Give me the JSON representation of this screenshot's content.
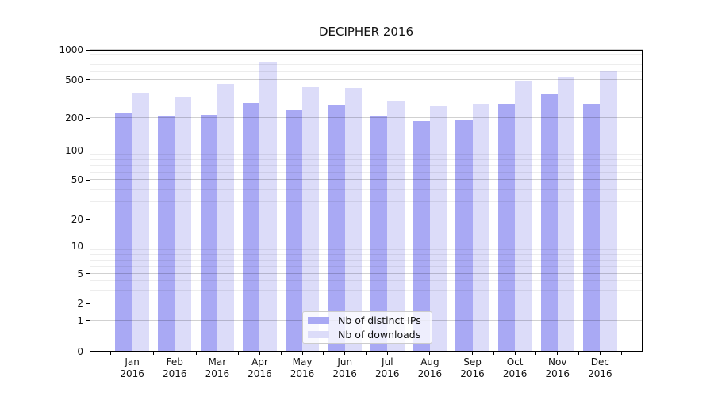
{
  "title": "DECIPHER 2016",
  "chart_data": {
    "type": "bar",
    "title": "DECIPHER 2016",
    "categories": [
      "Jan 2016",
      "Feb 2016",
      "Mar 2016",
      "Apr 2016",
      "May 2016",
      "Jun 2016",
      "Jul 2016",
      "Aug 2016",
      "Sep 2016",
      "Oct 2016",
      "Nov 2016",
      "Dec 2016"
    ],
    "series": [
      {
        "name": "Nb of distinct IPs",
        "color": "#a9a9f4",
        "values": [
          227,
          210,
          217,
          288,
          243,
          279,
          213,
          187,
          195,
          284,
          352,
          284
        ]
      },
      {
        "name": "Nb of downloads",
        "color": "#dcdcf9",
        "values": [
          366,
          337,
          452,
          755,
          420,
          414,
          303,
          267,
          284,
          485,
          538,
          609
        ]
      }
    ],
    "y_axis": {
      "scale": "symlog",
      "ticks": [
        0,
        1,
        2,
        5,
        10,
        20,
        50,
        100,
        200,
        500,
        1000
      ],
      "minor_gridlines": [
        3,
        4,
        6,
        7,
        8,
        9,
        30,
        40,
        60,
        70,
        80,
        90,
        300,
        400,
        600,
        700,
        800,
        900
      ],
      "range": [
        0,
        1000
      ]
    },
    "xlabel": "",
    "ylabel": "",
    "grid": true,
    "legend": {
      "position": "lower center",
      "entries": [
        "Nb of distinct IPs",
        "Nb of downloads"
      ]
    },
    "colors": {
      "background": "#ffffff",
      "axis": "#000000",
      "major_grid": "#d2d2d2",
      "minor_grid": "#ebebeb",
      "text": "#111111"
    }
  }
}
